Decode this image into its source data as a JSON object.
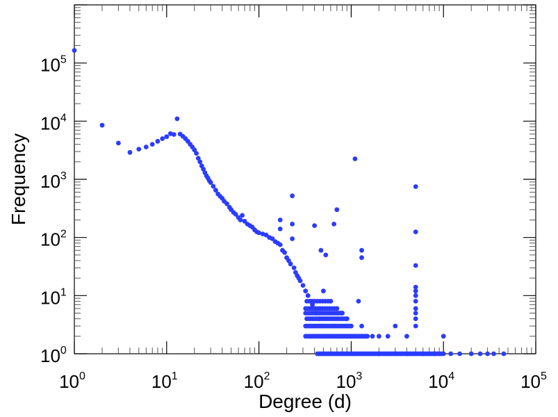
{
  "chart_data": {
    "type": "scatter",
    "title": "",
    "xlabel": "Degree (d)",
    "ylabel": "Frequency",
    "xscale": "log",
    "yscale": "log",
    "xlim": [
      1,
      100000
    ],
    "ylim": [
      1,
      1000000
    ],
    "grid": false,
    "marker_color": "#2b3cff",
    "x_ticks": [
      {
        "base": "10",
        "exp": "0"
      },
      {
        "base": "10",
        "exp": "1"
      },
      {
        "base": "10",
        "exp": "2"
      },
      {
        "base": "10",
        "exp": "3"
      },
      {
        "base": "10",
        "exp": "4"
      },
      {
        "base": "10",
        "exp": "5"
      }
    ],
    "y_ticks": [
      {
        "base": "10",
        "exp": "0"
      },
      {
        "base": "10",
        "exp": "1"
      },
      {
        "base": "10",
        "exp": "2"
      },
      {
        "base": "10",
        "exp": "3"
      },
      {
        "base": "10",
        "exp": "4"
      },
      {
        "base": "10",
        "exp": "5"
      }
    ],
    "points": [
      [
        1,
        165000
      ],
      [
        2,
        8500
      ],
      [
        3,
        4200
      ],
      [
        4,
        2900
      ],
      [
        5,
        3300
      ],
      [
        6,
        3600
      ],
      [
        7,
        4000
      ],
      [
        8,
        4500
      ],
      [
        9,
        5000
      ],
      [
        10,
        5400
      ],
      [
        11,
        6100
      ],
      [
        12,
        5900
      ],
      [
        13,
        11000
      ],
      [
        14,
        6000
      ],
      [
        15,
        5500
      ],
      [
        16,
        5000
      ],
      [
        17,
        4500
      ],
      [
        18,
        4000
      ],
      [
        19,
        3600
      ],
      [
        20,
        3200
      ],
      [
        21,
        2800
      ],
      [
        22,
        2300
      ],
      [
        23,
        2000
      ],
      [
        24,
        1700
      ],
      [
        25,
        1500
      ],
      [
        26,
        1300
      ],
      [
        27,
        1150
      ],
      [
        28,
        1050
      ],
      [
        29,
        950
      ],
      [
        30,
        880
      ],
      [
        32,
        760
      ],
      [
        34,
        650
      ],
      [
        36,
        560
      ],
      [
        38,
        510
      ],
      [
        40,
        470
      ],
      [
        42,
        420
      ],
      [
        45,
        380
      ],
      [
        48,
        330
      ],
      [
        50,
        300
      ],
      [
        53,
        270
      ],
      [
        56,
        250
      ],
      [
        60,
        220
      ],
      [
        63,
        200
      ],
      [
        66,
        240
      ],
      [
        70,
        190
      ],
      [
        75,
        170
      ],
      [
        80,
        160
      ],
      [
        85,
        150
      ],
      [
        90,
        135
      ],
      [
        95,
        125
      ],
      [
        100,
        120
      ],
      [
        110,
        115
      ],
      [
        120,
        110
      ],
      [
        130,
        100
      ],
      [
        140,
        95
      ],
      [
        150,
        85
      ],
      [
        160,
        80
      ],
      [
        170,
        75
      ],
      [
        180,
        60
      ],
      [
        190,
        55
      ],
      [
        200,
        45
      ],
      [
        210,
        40
      ],
      [
        220,
        35
      ],
      [
        230,
        520
      ],
      [
        240,
        30
      ],
      [
        250,
        25
      ],
      [
        260,
        22
      ],
      [
        270,
        20
      ],
      [
        280,
        18
      ],
      [
        300,
        15
      ],
      [
        320,
        12
      ],
      [
        340,
        10
      ],
      [
        360,
        8
      ],
      [
        380,
        7
      ],
      [
        400,
        6
      ],
      [
        420,
        5
      ],
      [
        450,
        4
      ],
      [
        480,
        3
      ],
      [
        500,
        2
      ],
      [
        550,
        2
      ],
      [
        600,
        2
      ],
      [
        650,
        3
      ],
      [
        700,
        2
      ],
      [
        750,
        2
      ],
      [
        800,
        2
      ],
      [
        900,
        2
      ],
      [
        1000,
        2
      ],
      [
        170,
        200
      ],
      [
        170,
        140
      ],
      [
        230,
        170
      ],
      [
        230,
        95
      ],
      [
        400,
        160
      ],
      [
        470,
        60
      ],
      [
        530,
        50
      ],
      [
        650,
        170
      ],
      [
        700,
        300
      ],
      [
        500,
        12
      ],
      [
        600,
        8
      ],
      [
        700,
        6
      ],
      [
        800,
        5
      ],
      [
        900,
        4
      ],
      [
        1100,
        2250
      ],
      [
        1300,
        60
      ],
      [
        1300,
        45
      ],
      [
        1200,
        8
      ],
      [
        1300,
        3
      ],
      [
        1700,
        2
      ],
      [
        2000,
        2
      ],
      [
        2500,
        2
      ],
      [
        3000,
        3
      ],
      [
        4000,
        2
      ],
      [
        5000,
        750
      ],
      [
        5000,
        125
      ],
      [
        5000,
        33
      ],
      [
        5000,
        14
      ],
      [
        5000,
        12
      ],
      [
        5000,
        10
      ],
      [
        5000,
        8
      ],
      [
        5000,
        6
      ],
      [
        5000,
        5
      ],
      [
        5000,
        4
      ],
      [
        5000,
        3
      ],
      [
        10000,
        2
      ],
      [
        8000,
        1
      ],
      [
        12000,
        1
      ],
      [
        15000,
        1
      ],
      [
        20000,
        1
      ],
      [
        25000,
        1
      ],
      [
        30000,
        1
      ],
      [
        35000,
        1
      ],
      [
        45000,
        1
      ],
      [
        2000,
        1
      ],
      [
        3000,
        1
      ],
      [
        4000,
        1
      ],
      [
        6000,
        1
      ]
    ],
    "dense_rows": [
      {
        "y": 3,
        "x_from": 320,
        "x_to": 1000,
        "count": 30
      },
      {
        "y": 2,
        "x_from": 320,
        "x_to": 1500,
        "count": 40
      },
      {
        "y": 1,
        "x_from": 430,
        "x_to": 10000,
        "count": 80
      },
      {
        "y": 5,
        "x_from": 320,
        "x_to": 800,
        "count": 20
      },
      {
        "y": 4,
        "x_from": 330,
        "x_to": 900,
        "count": 22
      },
      {
        "y": 6,
        "x_from": 320,
        "x_to": 700,
        "count": 14
      },
      {
        "y": 8,
        "x_from": 330,
        "x_to": 600,
        "count": 10
      }
    ]
  }
}
